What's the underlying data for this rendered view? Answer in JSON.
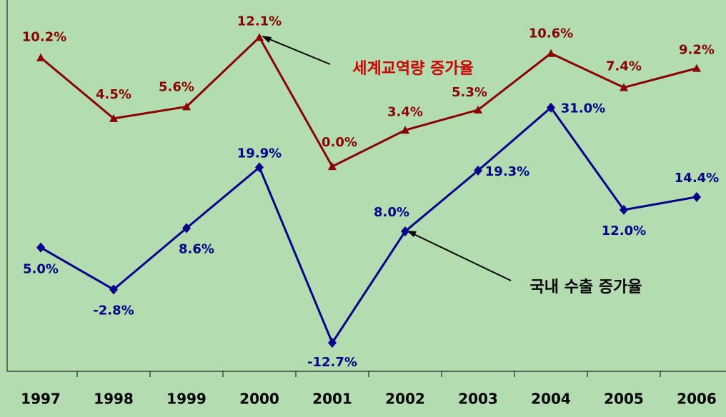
{
  "chart_data": {
    "type": "line",
    "categories": [
      "1997",
      "1998",
      "1999",
      "2000",
      "2001",
      "2002",
      "2003",
      "2004",
      "2005",
      "2006"
    ],
    "series": [
      {
        "name": "세계교역량 증가율",
        "color": "#8b0000",
        "marker": "triangle",
        "axis": "y2",
        "values": [
          10.2,
          4.5,
          5.6,
          12.1,
          0.0,
          3.4,
          5.3,
          10.6,
          7.4,
          9.2
        ],
        "value_labels": [
          "10.2%",
          "4.5%",
          "5.6%",
          "12.1%",
          "0.0%",
          "3.4%",
          "5.3%",
          "10.6%",
          "7.4%",
          "9.2%"
        ]
      },
      {
        "name": "국내 수출 증가율",
        "color": "#00008b",
        "marker": "diamond",
        "values": [
          5.0,
          -2.8,
          8.6,
          19.9,
          -12.7,
          8.0,
          19.3,
          31.0,
          12.0,
          14.4
        ],
        "value_labels": [
          "5.0%",
          "-2.8%",
          "8.6%",
          "19.9%",
          "-12.7%",
          "8.0%",
          "19.3%",
          "31.0%",
          "12.0%",
          "14.4%"
        ]
      }
    ],
    "ylim": [
      -18,
      51
    ],
    "y2lim": [
      -19.2,
      15.6
    ]
  }
}
